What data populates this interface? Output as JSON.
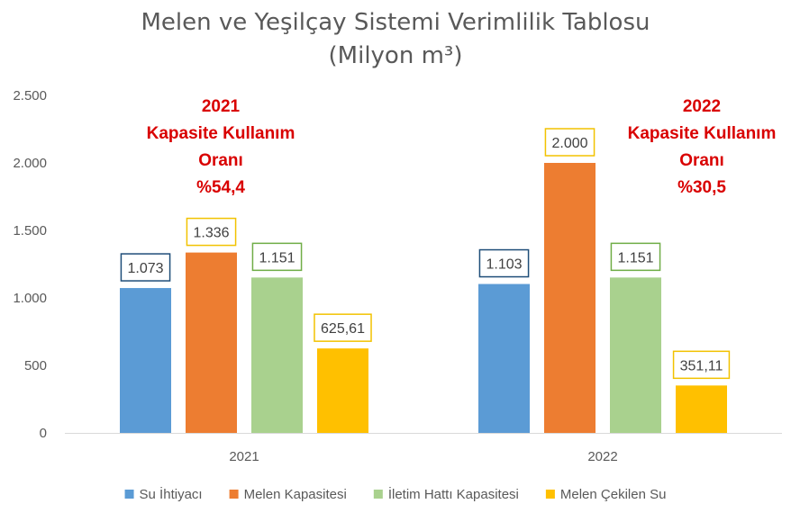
{
  "chart_data": {
    "type": "bar",
    "title_line1": "Melen ve Yeşilçay Sistemi Verimlilik Tablosu",
    "title_line2": "(Milyon m³)",
    "categories": [
      "2021",
      "2022"
    ],
    "ylim": [
      0,
      2500
    ],
    "yticks": [
      0,
      500,
      1000,
      1500,
      2000,
      2500
    ],
    "ytick_labels": [
      "0",
      "500",
      "1.000",
      "1.500",
      "2.000",
      "2.500"
    ],
    "grid": false,
    "legend_position": "bottom",
    "series": [
      {
        "name": "Su İhtiyacı",
        "color": "#5b9bd5",
        "label_border": "#1f4e79",
        "values": [
          1073,
          1103
        ],
        "labels": [
          "1.073",
          "1.103"
        ]
      },
      {
        "name": "Melen Kapasitesi",
        "color": "#ed7d31",
        "label_border": "#f2c200",
        "values": [
          1336,
          2000
        ],
        "labels": [
          "1.336",
          "2.000"
        ]
      },
      {
        "name": "İletim Hattı Kapasitesi",
        "color": "#a9d18e",
        "label_border": "#70ad47",
        "values": [
          1151,
          1151
        ],
        "labels": [
          "1.151",
          "1.151"
        ]
      },
      {
        "name": "Melen Çekilen Su",
        "color": "#ffc000",
        "label_border": "#f2c200",
        "values": [
          625.61,
          351.11
        ],
        "labels": [
          "625,61",
          "351,11"
        ]
      }
    ],
    "annotations": [
      {
        "category": "2021",
        "lines": [
          "2021",
          "Kapasite Kullanım",
          "Oranı",
          "%54,4"
        ]
      },
      {
        "category": "2022",
        "lines": [
          "2022",
          "Kapasite Kullanım",
          "Oranı",
          "%30,5"
        ]
      }
    ],
    "annotation_color": "#d90000"
  }
}
